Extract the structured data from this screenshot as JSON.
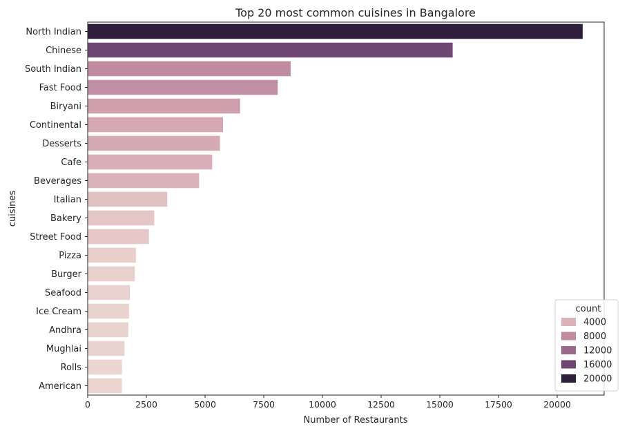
{
  "chart_data": {
    "type": "bar",
    "orientation": "horizontal",
    "title": "Top 20 most common cuisines in Bangalore",
    "xlabel": "Number of Restaurants",
    "ylabel": "cuisines",
    "xlim": [
      0,
      22000
    ],
    "x_ticks": [
      {
        "value": 0,
        "label": "0"
      },
      {
        "value": 2500,
        "label": "2500"
      },
      {
        "value": 5000,
        "label": "5000"
      },
      {
        "value": 7500,
        "label": "7500"
      },
      {
        "value": 10000,
        "label": "10000"
      },
      {
        "value": 12500,
        "label": "12500"
      },
      {
        "value": 15000,
        "label": "15000"
      },
      {
        "value": 17500,
        "label": "17500"
      },
      {
        "value": 20000,
        "label": "20000"
      }
    ],
    "categories": [
      "North Indian",
      "Chinese",
      "South Indian",
      "Fast Food",
      "Biryani",
      "Continental",
      "Desserts",
      "Cafe",
      "Beverages",
      "Italian",
      "Bakery",
      "Street Food",
      "Pizza",
      "Burger",
      "Seafood",
      "Ice Cream",
      "Andhra",
      "Mughlai",
      "Rolls",
      "American"
    ],
    "values": [
      21085,
      15547,
      8644,
      8096,
      6492,
      5765,
      5633,
      5303,
      4748,
      3389,
      2836,
      2610,
      2054,
      2006,
      1795,
      1760,
      1732,
      1569,
      1460,
      1455
    ],
    "colors": [
      "#2e1e3b",
      "#6e4772",
      "#c08a9f",
      "#c18fa3",
      "#d09fae",
      "#d5a8b3",
      "#d6aab5",
      "#d9aeb8",
      "#dcb3bb",
      "#e2c1c3",
      "#e5c6c6",
      "#e5c8c7",
      "#e8cfcc",
      "#e8d0cc",
      "#e9d2cf",
      "#e9d3cf",
      "#e9d3cf",
      "#e9d4d0",
      "#ead5d1",
      "#ead5d1"
    ],
    "grid": false,
    "legend": {
      "title": "count",
      "placement": "bottom-right",
      "entries": [
        {
          "label": "4000",
          "color": "#dcb3bb"
        },
        {
          "label": "8000",
          "color": "#c08a9f"
        },
        {
          "label": "12000",
          "color": "#9a6888"
        },
        {
          "label": "16000",
          "color": "#6c4570"
        },
        {
          "label": "20000",
          "color": "#2e1e3b"
        }
      ]
    }
  }
}
